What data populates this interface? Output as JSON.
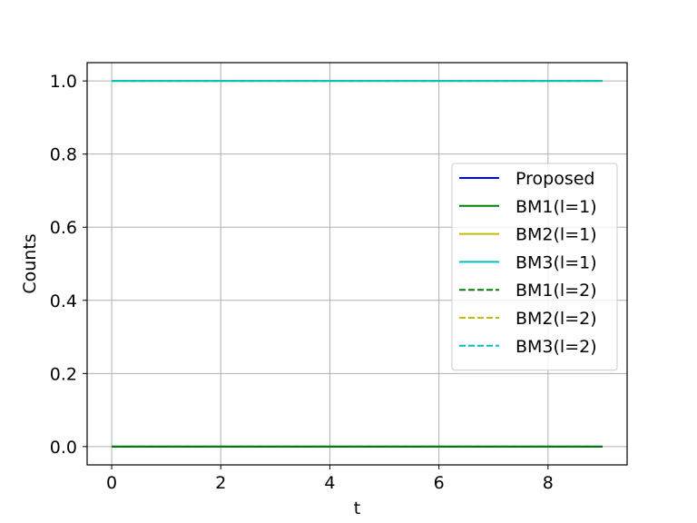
{
  "chart_data": {
    "type": "line",
    "title": "",
    "xlabel": "t",
    "ylabel": "Counts",
    "xlim": [
      -0.45,
      9.45
    ],
    "ylim": [
      -0.05,
      1.05
    ],
    "xticks": [
      0,
      2,
      4,
      6,
      8
    ],
    "yticks": [
      0.0,
      0.2,
      0.4,
      0.6,
      0.8,
      1.0
    ],
    "xtick_labels": [
      "0",
      "2",
      "4",
      "6",
      "8"
    ],
    "ytick_labels": [
      "0.0",
      "0.2",
      "0.4",
      "0.6",
      "0.8",
      "1.0"
    ],
    "grid": true,
    "legend_position": "center-right",
    "x": [
      0,
      1,
      2,
      3,
      4,
      5,
      6,
      7,
      8,
      9
    ],
    "series": [
      {
        "name": "Proposed",
        "color": "#0000ff",
        "dash": "solid",
        "values": [
          0,
          0,
          0,
          0,
          0,
          0,
          0,
          0,
          0,
          0
        ]
      },
      {
        "name": "BM1(l=1)",
        "color": "#008000",
        "dash": "solid",
        "values": [
          0,
          0,
          0,
          0,
          0,
          0,
          0,
          0,
          0,
          0
        ]
      },
      {
        "name": "BM2(l=1)",
        "color": "#bfbf00",
        "dash": "solid",
        "values": [
          1,
          1,
          1,
          1,
          1,
          1,
          1,
          1,
          1,
          1
        ]
      },
      {
        "name": "BM3(l=1)",
        "color": "#00bfbf",
        "dash": "solid",
        "values": [
          1,
          1,
          1,
          1,
          1,
          1,
          1,
          1,
          1,
          1
        ]
      },
      {
        "name": "BM1(l=2)",
        "color": "#008000",
        "dash": "dashed",
        "values": [
          0,
          0,
          0,
          0,
          0,
          0,
          0,
          0,
          0,
          0
        ]
      },
      {
        "name": "BM2(l=2)",
        "color": "#bfbf00",
        "dash": "dashed",
        "values": [
          1,
          1,
          1,
          1,
          1,
          1,
          1,
          1,
          1,
          1
        ]
      },
      {
        "name": "BM3(l=2)",
        "color": "#00bfbf",
        "dash": "dashed",
        "values": [
          1,
          1,
          1,
          1,
          1,
          1,
          1,
          1,
          1,
          1
        ]
      }
    ]
  }
}
